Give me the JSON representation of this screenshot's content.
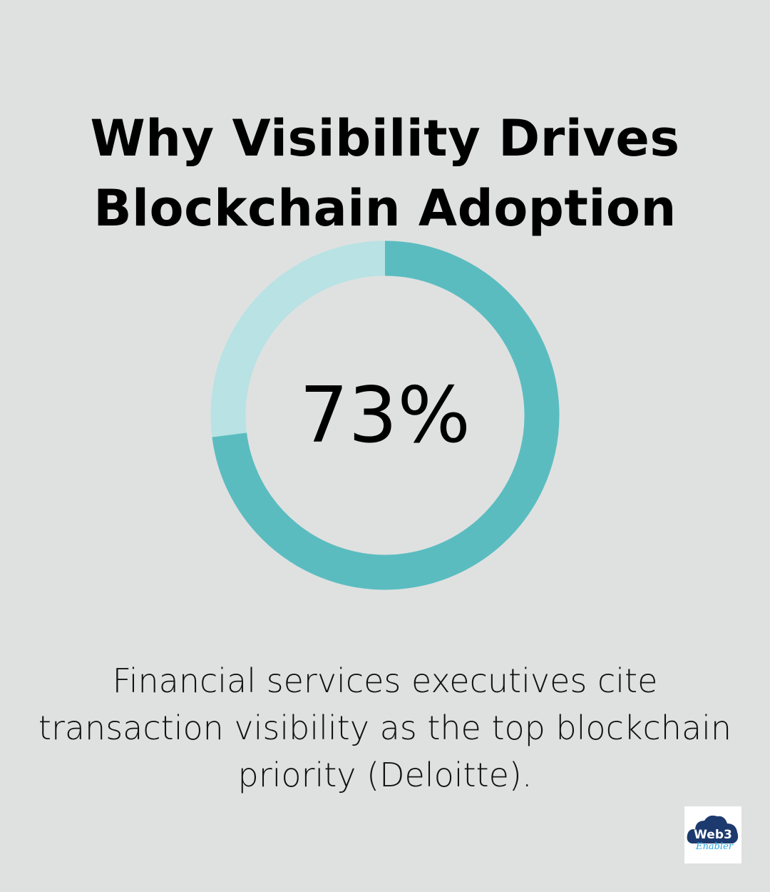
{
  "title": "Why Visibility Drives Blockchain Adoption",
  "chart_data": {
    "type": "pie",
    "variant": "donut",
    "values": [
      73,
      27
    ],
    "center_label": "73%",
    "colors": {
      "filled": "#5bbcc0",
      "remainder": "#b8e2e3"
    }
  },
  "caption": "Financial services executives cite transaction visibility as the top blockchain priority (Deloitte).",
  "logo": {
    "text": "Web3 Enabler",
    "colors": {
      "cloud": "#1d3a6e",
      "script": "#2aa7e0"
    }
  }
}
